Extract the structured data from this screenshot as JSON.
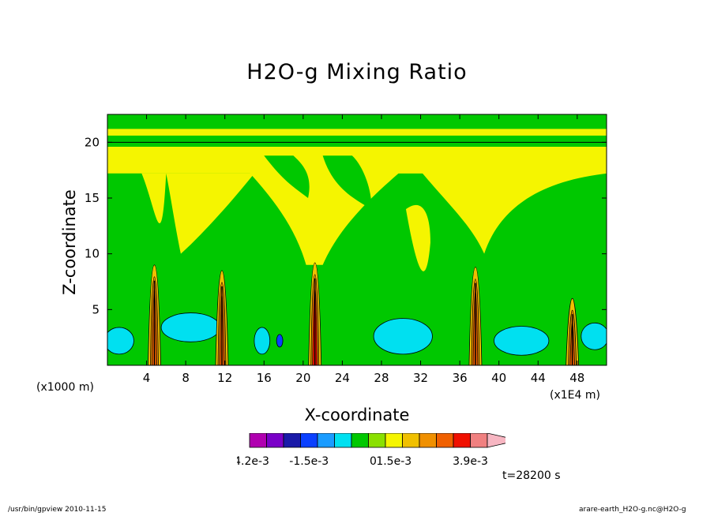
{
  "chart_data": {
    "type": "heatmap",
    "title": "H2O-g Mixing Ratio",
    "xlabel": "X-coordinate",
    "ylabel": "Z-coordinate",
    "x_unit_label": "(x1000 m)",
    "x_scale_label": "(x1E4 m)",
    "xlim": [
      0,
      51
    ],
    "ylim": [
      0,
      22.5
    ],
    "xticks": [
      4,
      8,
      12,
      16,
      20,
      24,
      28,
      32,
      36,
      40,
      44,
      48
    ],
    "xtick_labels": [
      "4",
      "8",
      "12",
      "16",
      "20",
      "24",
      "28",
      "32",
      "36",
      "40",
      "44",
      "48"
    ],
    "yticks": [
      5,
      10,
      15,
      20
    ],
    "ytick_labels": [
      "5",
      "10",
      "15",
      "20"
    ],
    "time_label": "t=28200 s",
    "colorbar": {
      "colors": [
        "#b000b0",
        "#7a00c8",
        "#1a1aa8",
        "#0a40ff",
        "#1a9cff",
        "#00e0f0",
        "#00c800",
        "#8ae000",
        "#f5f500",
        "#f0c000",
        "#f09000",
        "#f06000",
        "#f01000",
        "#f08080",
        "#f7b6c2"
      ],
      "tick_labels": [
        "-4.2e-3",
        "-1.5e-3",
        "0",
        "1.5e-3",
        "3.9e-3"
      ]
    },
    "plumes": [
      {
        "x": 4.8,
        "top": 9.0
      },
      {
        "x": 11.7,
        "top": 8.5
      },
      {
        "x": 21.2,
        "top": 9.2
      },
      {
        "x": 37.6,
        "top": 8.8
      },
      {
        "x": 47.5,
        "top": 6.0
      }
    ]
  },
  "footer": {
    "left": "/usr/bin/gpview   2010-11-15",
    "right": "arare-earth_H2O-g.nc@H2O-g"
  }
}
